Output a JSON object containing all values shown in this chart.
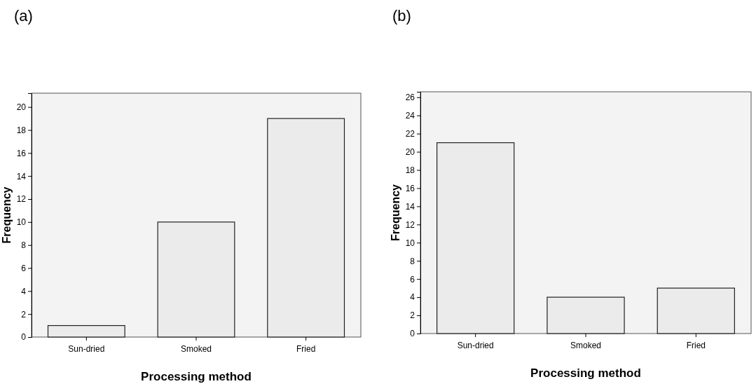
{
  "chart_data": [
    {
      "type": "bar",
      "title": "(a)",
      "xlabel": "Processing method",
      "ylabel": "Frequency",
      "categories": [
        "Sun-dried",
        "Smoked",
        "Fried"
      ],
      "values": [
        1,
        10,
        19
      ],
      "color": "#ebebeb",
      "ylim": [
        0,
        21.2
      ],
      "yticks": [
        0,
        2,
        4,
        6,
        8,
        10,
        12,
        14,
        16,
        18,
        20
      ],
      "grid": false
    },
    {
      "type": "bar",
      "title": "(b)",
      "xlabel": "Processing method",
      "ylabel": "Frequency",
      "categories": [
        "Sun-dried",
        "Smoked",
        "Fried"
      ],
      "values": [
        21,
        4,
        5
      ],
      "color": "#ebebeb",
      "ylim": [
        0,
        26.6
      ],
      "yticks": [
        0,
        2,
        4,
        6,
        8,
        10,
        12,
        14,
        16,
        18,
        20,
        22,
        24,
        26
      ],
      "grid": false
    }
  ]
}
